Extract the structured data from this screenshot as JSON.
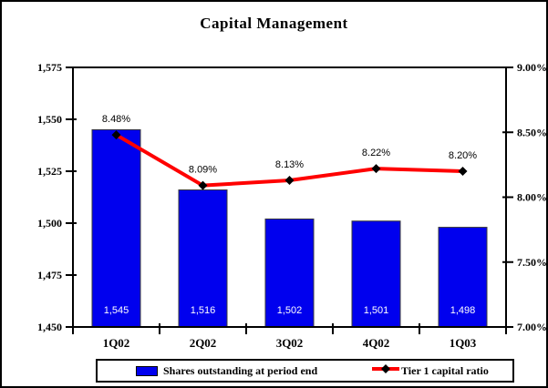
{
  "title": "Capital Management",
  "colors": {
    "bar": "#0000EE",
    "bar_border": "#3A3A3A",
    "line": "#FF0000",
    "marker": "#000000",
    "axis": "#000000",
    "bar_label_text": "#FFFFFF",
    "data_label_text": "#000000"
  },
  "chart_data": {
    "type": "bar",
    "subtype": "bar+line combo",
    "title": "Capital Management",
    "categories": [
      "1Q02",
      "2Q02",
      "3Q02",
      "4Q02",
      "1Q03"
    ],
    "series": [
      {
        "name": "Shares outstanding at period end",
        "type": "bar",
        "axis": "left",
        "values": [
          1545,
          1516,
          1502,
          1501,
          1498
        ],
        "labels": [
          "1,545",
          "1,516",
          "1,502",
          "1,501",
          "1,498"
        ]
      },
      {
        "name": "Tier 1 capital ratio",
        "type": "line",
        "axis": "right",
        "values": [
          8.48,
          8.09,
          8.13,
          8.22,
          8.2
        ],
        "labels": [
          "8.48%",
          "8.09%",
          "8.13%",
          "8.22%",
          "8.20%"
        ]
      }
    ],
    "left_axis": {
      "min": 1450,
      "max": 1575,
      "step": 25,
      "tick_labels": [
        "1,450",
        "1,475",
        "1,500",
        "1,525",
        "1,550",
        "1,575"
      ]
    },
    "right_axis": {
      "min": 7.0,
      "max": 9.0,
      "step": 0.5,
      "tick_labels": [
        "7.00%",
        "7.50%",
        "8.00%",
        "8.50%",
        "9.00%"
      ]
    },
    "grid": "off",
    "legend_position": "bottom"
  },
  "legend": {
    "bar_label": "Shares outstanding at period end",
    "line_label": "Tier 1 capital ratio"
  }
}
